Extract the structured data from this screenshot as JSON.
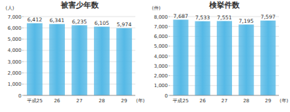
{
  "chart_data": [
    {
      "type": "bar",
      "title": "被害少年数",
      "y_label": "(人)",
      "x_label": "(年)",
      "categories": [
        "平成25",
        "26",
        "27",
        "28",
        "29"
      ],
      "values": [
        6412,
        6341,
        6235,
        6105,
        5974
      ],
      "value_labels": [
        "6,412",
        "6,341",
        "6,235",
        "6,105",
        "5,974"
      ],
      "color": "#55b9e6",
      "ylim": [
        0,
        7000
      ],
      "yticks": [
        0,
        {
          "value": 1000,
          "label": "1,000"
        },
        {
          "value": 2000,
          "label": "2,000"
        },
        {
          "value": 3000,
          "label": "3,000"
        },
        {
          "value": 4000,
          "label": "4,000"
        },
        {
          "value": 5000,
          "label": "5,000"
        },
        {
          "value": 6000,
          "label": "6,000"
        },
        {
          "value": 7000,
          "label": "7,000"
        }
      ],
      "grid": true,
      "data_labels": true
    },
    {
      "type": "bar",
      "title": "検挙件数",
      "y_label": "(件)",
      "x_label": "(年)",
      "categories": [
        "平成25",
        "26",
        "27",
        "28",
        "29"
      ],
      "values": [
        7687,
        7533,
        7551,
        7195,
        7597
      ],
      "value_labels": [
        "7,687",
        "7,533",
        "7,551",
        "7,195",
        "7,597"
      ],
      "color": "#55b9e6",
      "ylim": [
        0,
        8000
      ],
      "yticks": [
        0,
        {
          "value": 1000,
          "label": "1,000"
        },
        {
          "value": 2000,
          "label": "2,000"
        },
        {
          "value": 3000,
          "label": "3,000"
        },
        {
          "value": 4000,
          "label": "4,000"
        },
        {
          "value": 5000,
          "label": "5,000"
        },
        {
          "value": 6000,
          "label": "6,000"
        },
        {
          "value": 7000,
          "label": "7,000"
        },
        {
          "value": 8000,
          "label": "8,000"
        }
      ],
      "grid": true,
      "data_labels": true
    }
  ]
}
